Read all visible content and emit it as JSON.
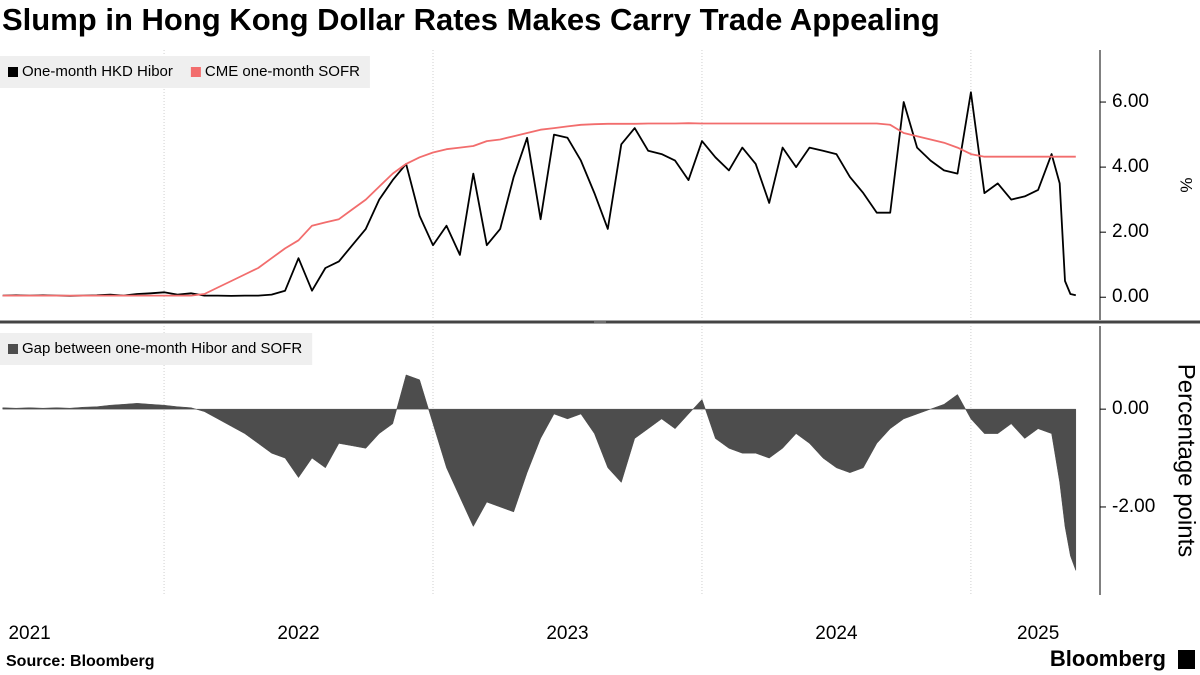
{
  "title": "Slump in Hong Kong Dollar Rates Makes Carry Trade Appealing",
  "source": "Source: Bloomberg",
  "logo": "Bloomberg",
  "chart_data": [
    {
      "type": "line",
      "y_label": "%",
      "x": [
        2021.4,
        2021.45,
        2021.5,
        2021.55,
        2021.6,
        2021.65,
        2021.7,
        2021.75,
        2021.8,
        2021.85,
        2021.9,
        2021.95,
        2022,
        2022.05,
        2022.1,
        2022.15,
        2022.2,
        2022.25,
        2022.3,
        2022.35,
        2022.4,
        2022.45,
        2022.5,
        2022.55,
        2022.6,
        2022.65,
        2022.7,
        2022.75,
        2022.8,
        2022.85,
        2022.9,
        2022.95,
        2023,
        2023.05,
        2023.1,
        2023.15,
        2023.2,
        2023.25,
        2023.3,
        2023.35,
        2023.4,
        2023.45,
        2023.5,
        2023.55,
        2023.6,
        2023.65,
        2023.7,
        2023.75,
        2023.8,
        2023.85,
        2023.9,
        2023.95,
        2024,
        2024.05,
        2024.1,
        2024.15,
        2024.2,
        2024.25,
        2024.3,
        2024.35,
        2024.4,
        2024.45,
        2024.5,
        2024.55,
        2024.6,
        2024.65,
        2024.7,
        2024.75,
        2024.8,
        2024.85,
        2024.9,
        2024.95,
        2025,
        2025.05,
        2025.1,
        2025.15,
        2025.2,
        2025.25,
        2025.3,
        2025.33,
        2025.35,
        2025.37,
        2025.39
      ],
      "series": [
        {
          "name": "One-month HKD Hibor",
          "color": "#000000",
          "values": [
            0.05,
            0.06,
            0.05,
            0.06,
            0.05,
            0.04,
            0.05,
            0.06,
            0.08,
            0.05,
            0.1,
            0.12,
            0.15,
            0.08,
            0.12,
            0.05,
            0.05,
            0.04,
            0.05,
            0.05,
            0.08,
            0.2,
            1.2,
            0.2,
            0.9,
            1.1,
            1.6,
            2.1,
            3.0,
            3.6,
            4.1,
            2.5,
            1.6,
            2.2,
            1.3,
            3.8,
            1.6,
            2.1,
            3.7,
            4.9,
            2.4,
            5.0,
            4.9,
            4.2,
            3.2,
            2.1,
            4.7,
            5.2,
            4.5,
            4.4,
            4.2,
            3.6,
            4.8,
            4.3,
            3.9,
            4.6,
            4.1,
            2.9,
            4.6,
            4.0,
            4.6,
            4.5,
            4.4,
            3.7,
            3.2,
            2.6,
            2.6,
            6.0,
            4.6,
            4.2,
            3.9,
            3.8,
            6.3,
            3.2,
            3.5,
            3.0,
            3.1,
            3.3,
            4.4,
            3.5,
            0.5,
            0.1,
            0.06
          ]
        },
        {
          "name": "CME one-month SOFR",
          "color": "#f26d6d",
          "values": [
            0.05,
            0.05,
            0.05,
            0.05,
            0.05,
            0.05,
            0.05,
            0.05,
            0.05,
            0.05,
            0.05,
            0.05,
            0.05,
            0.05,
            0.05,
            0.1,
            0.3,
            0.5,
            0.7,
            0.9,
            1.2,
            1.5,
            1.75,
            2.2,
            2.3,
            2.4,
            2.7,
            3.0,
            3.4,
            3.8,
            4.1,
            4.3,
            4.45,
            4.55,
            4.6,
            4.65,
            4.8,
            4.85,
            4.95,
            5.05,
            5.15,
            5.2,
            5.25,
            5.3,
            5.32,
            5.33,
            5.33,
            5.33,
            5.34,
            5.34,
            5.34,
            5.35,
            5.34,
            5.34,
            5.34,
            5.34,
            5.34,
            5.34,
            5.34,
            5.34,
            5.34,
            5.34,
            5.34,
            5.34,
            5.34,
            5.34,
            5.3,
            5.05,
            4.95,
            4.85,
            4.75,
            4.6,
            4.4,
            4.32,
            4.32,
            4.32,
            4.32,
            4.32,
            4.32,
            4.32,
            4.32,
            4.32,
            4.32
          ]
        }
      ],
      "xlim": [
        2021.39,
        2025.48
      ],
      "xgrid": [
        2022,
        2023,
        2024,
        2025
      ],
      "ylim": [
        -0.7,
        7.6
      ],
      "yticks": [
        {
          "value": 0,
          "label": "0.00"
        },
        {
          "value": 2,
          "label": "2.00"
        },
        {
          "value": 4,
          "label": "4.00"
        },
        {
          "value": 6,
          "label": "6.00"
        }
      ]
    },
    {
      "type": "area",
      "y_label": "Percentage points",
      "x": [
        2021.4,
        2021.45,
        2021.5,
        2021.55,
        2021.6,
        2021.65,
        2021.7,
        2021.75,
        2021.8,
        2021.85,
        2021.9,
        2021.95,
        2022,
        2022.05,
        2022.1,
        2022.15,
        2022.2,
        2022.25,
        2022.3,
        2022.35,
        2022.4,
        2022.45,
        2022.5,
        2022.55,
        2022.6,
        2022.65,
        2022.7,
        2022.75,
        2022.8,
        2022.85,
        2022.9,
        2022.95,
        2023,
        2023.05,
        2023.1,
        2023.15,
        2023.2,
        2023.25,
        2023.3,
        2023.35,
        2023.4,
        2023.45,
        2023.5,
        2023.55,
        2023.6,
        2023.65,
        2023.7,
        2023.75,
        2023.8,
        2023.85,
        2023.9,
        2023.95,
        2024,
        2024.05,
        2024.1,
        2024.15,
        2024.2,
        2024.25,
        2024.3,
        2024.35,
        2024.4,
        2024.45,
        2024.5,
        2024.55,
        2024.6,
        2024.65,
        2024.7,
        2024.75,
        2024.8,
        2024.85,
        2024.9,
        2024.95,
        2025,
        2025.05,
        2025.1,
        2025.15,
        2025.2,
        2025.25,
        2025.3,
        2025.33,
        2025.35,
        2025.37,
        2025.39
      ],
      "series": [
        {
          "name": "Gap between one-month Hibor and SOFR",
          "color": "#4d4d4d",
          "values": [
            0.03,
            0.02,
            0.03,
            0.02,
            0.03,
            0.02,
            0.04,
            0.05,
            0.08,
            0.1,
            0.12,
            0.1,
            0.08,
            0.05,
            0.03,
            -0.05,
            -0.2,
            -0.35,
            -0.5,
            -0.7,
            -0.9,
            -1.0,
            -1.4,
            -1.0,
            -1.2,
            -0.7,
            -0.75,
            -0.8,
            -0.5,
            -0.3,
            0.7,
            0.6,
            -0.3,
            -1.2,
            -1.8,
            -2.4,
            -1.9,
            -2.0,
            -2.1,
            -1.3,
            -0.6,
            -0.1,
            -0.2,
            -0.1,
            -0.5,
            -1.2,
            -1.5,
            -0.6,
            -0.4,
            -0.2,
            -0.4,
            -0.1,
            0.2,
            -0.6,
            -0.8,
            -0.9,
            -0.9,
            -1.0,
            -0.8,
            -0.5,
            -0.7,
            -1.0,
            -1.2,
            -1.3,
            -1.2,
            -0.7,
            -0.4,
            -0.2,
            -0.1,
            0.0,
            0.1,
            0.3,
            -0.2,
            -0.5,
            -0.5,
            -0.3,
            -0.6,
            -0.4,
            -0.5,
            -1.5,
            -2.4,
            -3.0,
            -3.3
          ]
        }
      ],
      "xlim": [
        2021.39,
        2025.48
      ],
      "xgrid": [
        2022,
        2023,
        2024,
        2025
      ],
      "xticks": [
        {
          "value": 2021.5,
          "label": "2021"
        },
        {
          "value": 2022.5,
          "label": "2022"
        },
        {
          "value": 2023.5,
          "label": "2023"
        },
        {
          "value": 2024.5,
          "label": "2024"
        },
        {
          "value": 2025.25,
          "label": "2025"
        }
      ],
      "ylim": [
        -3.8,
        1.7
      ],
      "yticks": [
        {
          "value": 0,
          "label": "0.00"
        },
        {
          "value": -2,
          "label": "-2.00"
        }
      ]
    }
  ]
}
